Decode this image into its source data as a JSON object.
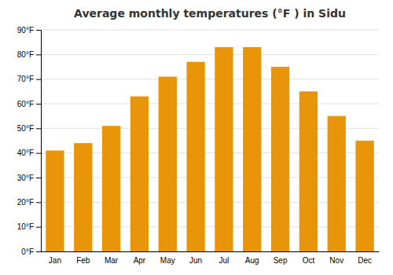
{
  "chart_data": {
    "type": "bar",
    "title": "Average monthly temperatures (°F ) in Sidu",
    "categories": [
      "Jan",
      "Feb",
      "Mar",
      "Apr",
      "May",
      "Jun",
      "Jul",
      "Aug",
      "Sep",
      "Oct",
      "Nov",
      "Dec"
    ],
    "values": [
      41,
      44,
      51,
      63,
      71,
      77,
      83,
      83,
      75,
      65,
      55,
      45
    ],
    "color": "#E8950A",
    "ylim": [
      0,
      90
    ],
    "yticks": [
      {
        "value": 0,
        "label": "0°F"
      },
      {
        "value": 10,
        "label": "10°F"
      },
      {
        "value": 20,
        "label": "20°F"
      },
      {
        "value": 30,
        "label": "30°F"
      },
      {
        "value": 40,
        "label": "40°F"
      },
      {
        "value": 50,
        "label": "50°F"
      },
      {
        "value": 60,
        "label": "60°F"
      },
      {
        "value": 70,
        "label": "70°F"
      },
      {
        "value": 80,
        "label": "80°F"
      },
      {
        "value": 90,
        "label": "90°F"
      }
    ],
    "grid": true
  }
}
